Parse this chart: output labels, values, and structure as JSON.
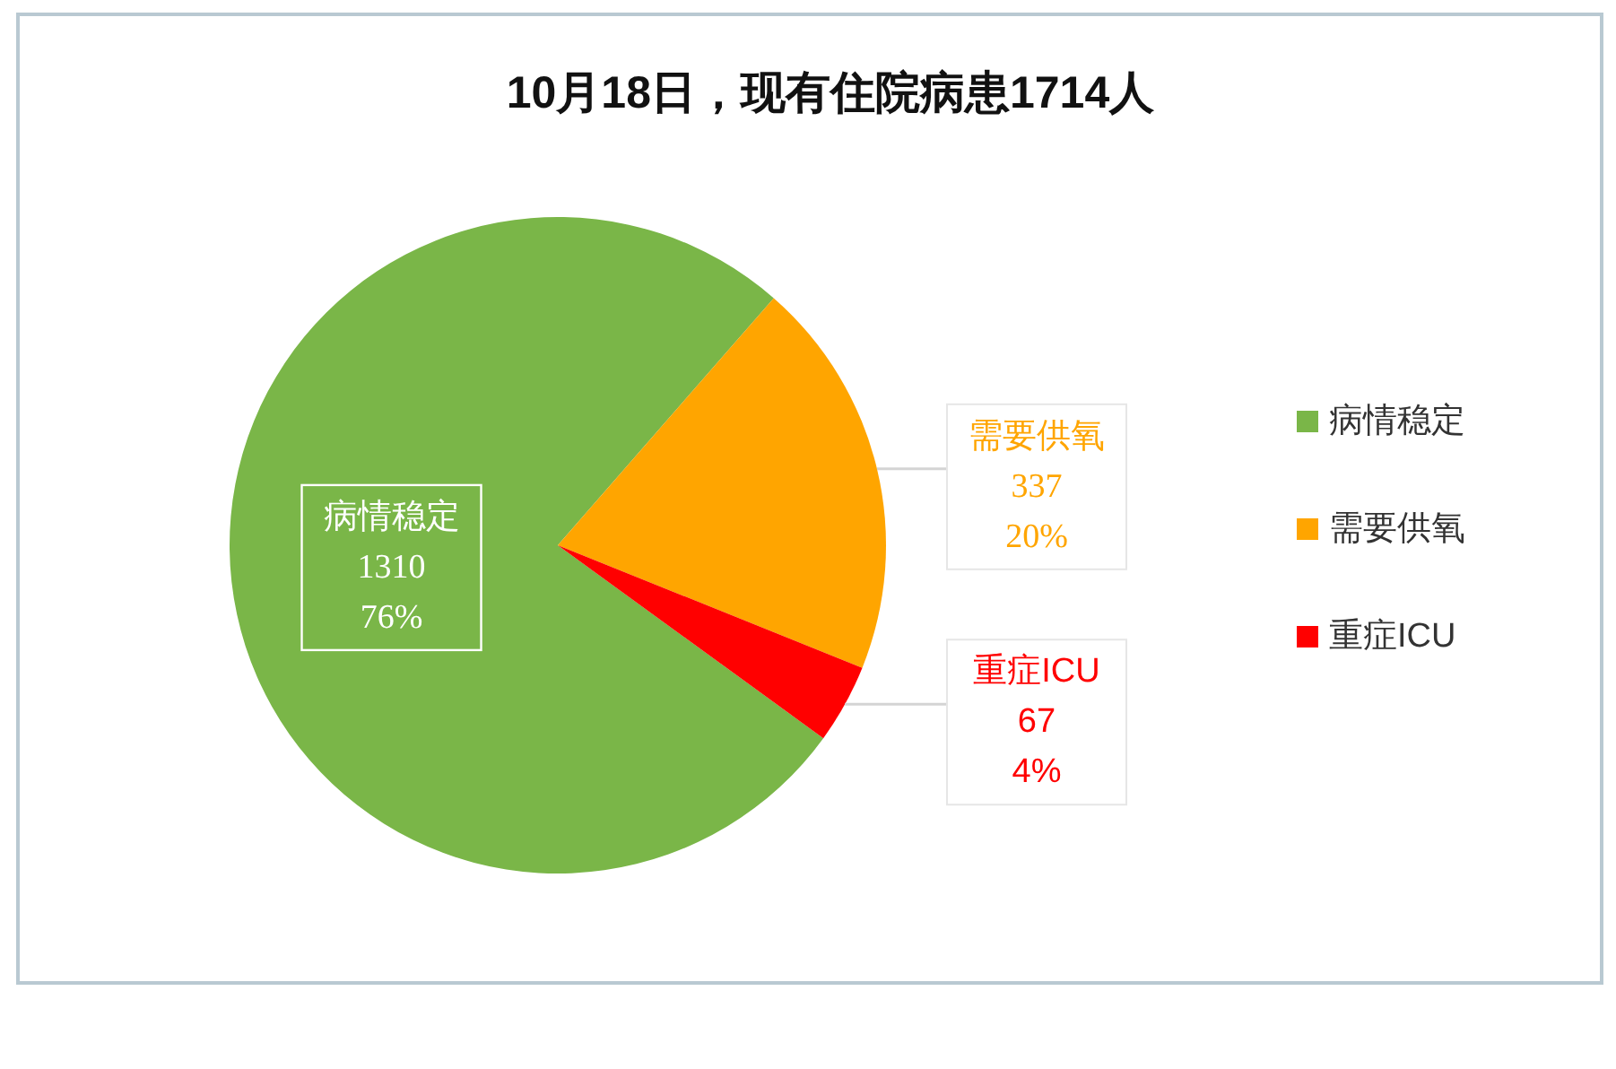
{
  "chart_data": {
    "type": "pie",
    "title": "10月18日，现有住院病患1714人",
    "categories": [
      "病情稳定",
      "需要供氧",
      "重症ICU"
    ],
    "values": [
      1310,
      337,
      67
    ],
    "colors": [
      "#7ab648",
      "#ffa500",
      "#ff0000"
    ],
    "value_labels": [
      "1310\n76%",
      "337\n20%",
      "67\n4%"
    ],
    "legend": "right"
  }
}
